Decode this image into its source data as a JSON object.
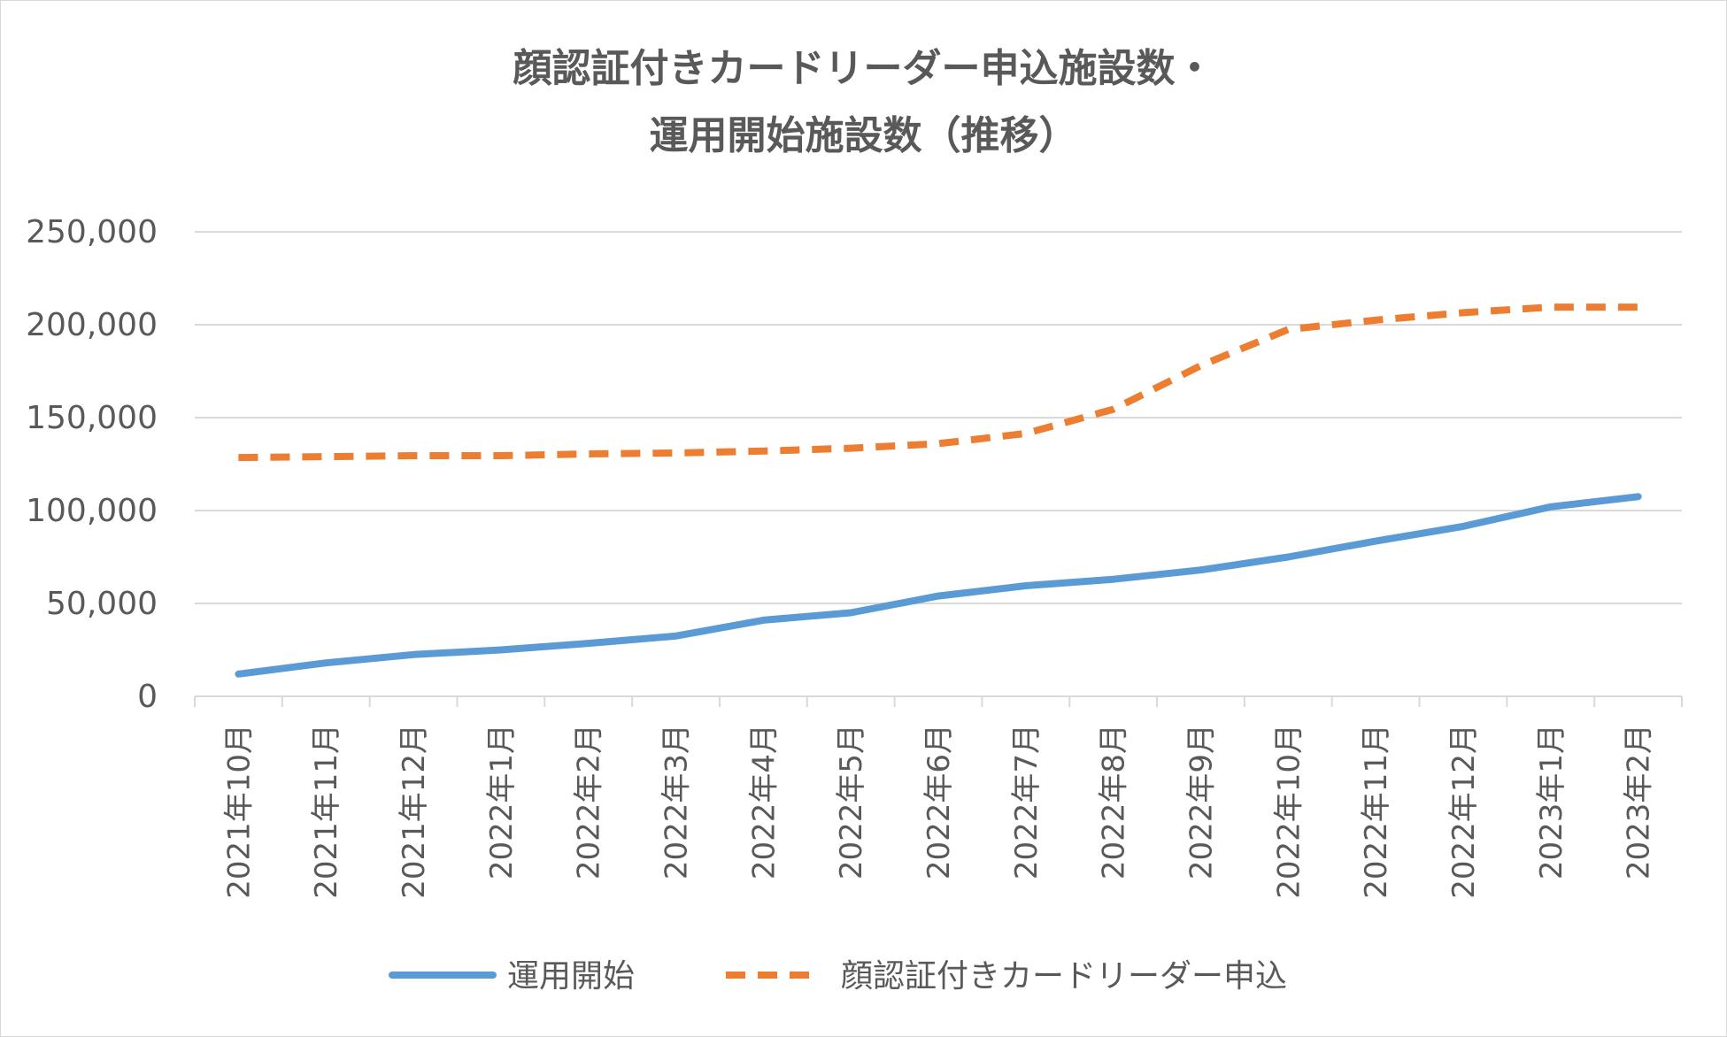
{
  "chart_data": {
    "type": "line",
    "title_line1": "顔認証付きカードリーダー申込施設数・",
    "title_line2": "運用開始施設数（推移）",
    "xlabel": "",
    "ylabel": "",
    "ylim": [
      0,
      250000
    ],
    "y_ticks": [
      "0",
      "50,000",
      "100,000",
      "150,000",
      "200,000",
      "250,000"
    ],
    "y_tick_values": [
      0,
      50000,
      100000,
      150000,
      200000,
      250000
    ],
    "grid": true,
    "legend_position": "bottom",
    "categories": [
      "2021年10月",
      "2021年11月",
      "2021年12月",
      "2022年1月",
      "2022年2月",
      "2022年3月",
      "2022年4月",
      "2022年5月",
      "2022年6月",
      "2022年7月",
      "2022年8月",
      "2022年9月",
      "2022年10月",
      "2022年11月",
      "2022年12月",
      "2023年1月",
      "2023年2月"
    ],
    "series": [
      {
        "name": "運用開始",
        "color": "#5B9BD5",
        "dash": "solid",
        "values": [
          12000,
          18000,
          22500,
          25000,
          28500,
          32500,
          41000,
          45000,
          54000,
          59500,
          63000,
          68000,
          75000,
          83500,
          91500,
          102000,
          107500
        ]
      },
      {
        "name": "顔認証付きカードリーダー申込",
        "color": "#ED7D31",
        "dash": "dashed",
        "values": [
          128500,
          129000,
          129500,
          129500,
          130500,
          131000,
          132000,
          133500,
          136000,
          141500,
          154500,
          178000,
          197500,
          202500,
          206500,
          209500,
          209500
        ]
      }
    ]
  }
}
